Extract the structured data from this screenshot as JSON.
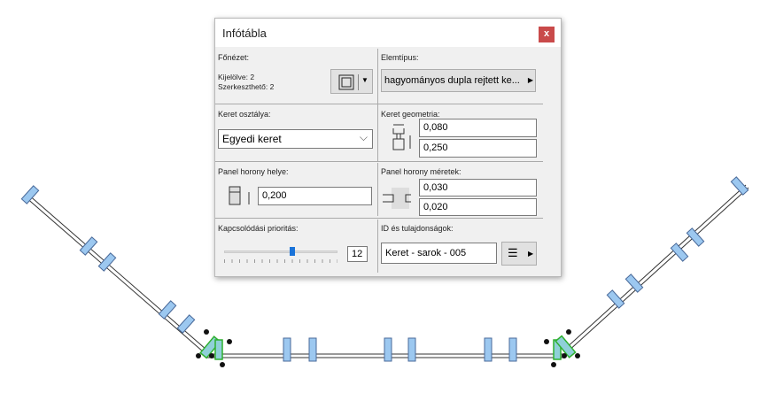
{
  "dialog": {
    "title": "Infótábla",
    "close_label": "x",
    "main_view": {
      "label": "Főnézet:",
      "selected": "Kijelölve: 2",
      "editable": "Szerkeszthető: 2"
    },
    "element_type": {
      "label": "Elemtípus:",
      "value": "hagyományos dupla rejtett ke..."
    },
    "frame_class": {
      "label": "Keret osztálya:",
      "value": "Egyedi keret"
    },
    "frame_geometry": {
      "label": "Keret geometria:",
      "width": "0,080",
      "depth": "0,250"
    },
    "panel_groove_pos": {
      "label": "Panel horony helye:",
      "value": "0,200"
    },
    "panel_groove_size": {
      "label": "Panel horony méretek:",
      "width": "0,030",
      "depth": "0,020"
    },
    "priority": {
      "label": "Kapcsolódási prioritás:",
      "value": "12",
      "slider_fraction": 0.6
    },
    "id": {
      "label": "ID és tulajdonságok:",
      "value": "Keret - sarok - 005"
    }
  },
  "colors": {
    "close": "#c94a4a",
    "mullion": "#9cc8f0",
    "selected": "#2fb02f"
  }
}
